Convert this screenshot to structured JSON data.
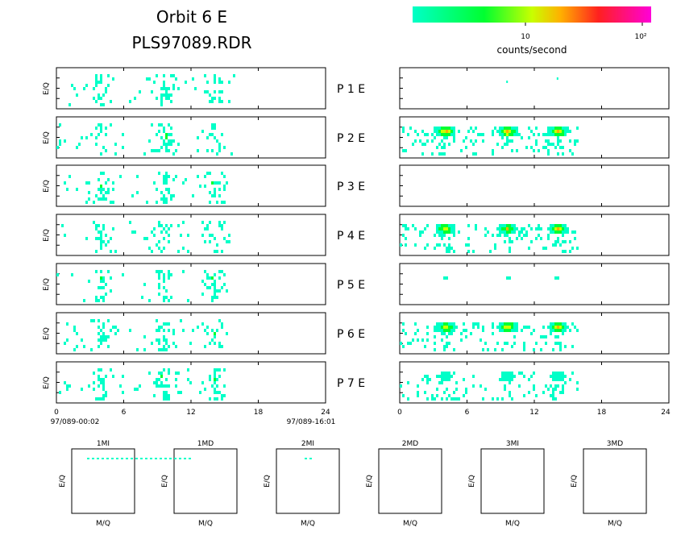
{
  "header": {
    "title_line1": "Orbit 6 E",
    "title_line2": "PLS97089.RDR"
  },
  "colorbar": {
    "label": "counts/second",
    "tick_labels": [
      "10",
      "10²"
    ],
    "colors": [
      "#00ffc8",
      "#00ff30",
      "#c8ff00",
      "#ffb000",
      "#ff2020",
      "#ff00d8"
    ]
  },
  "panels": {
    "ylabel": "E/Q",
    "labels": [
      "P 1 E",
      "P 2 E",
      "P 3 E",
      "P 4 E",
      "P 5 E",
      "P 6 E",
      "P 7 E"
    ]
  },
  "time_axis": {
    "ticks": [
      "0",
      "6",
      "12",
      "18",
      "24"
    ],
    "start_label": "97/089-00:02",
    "end_label": "97/089-16:01"
  },
  "mass_panels": {
    "titles": [
      "1MI",
      "1MD",
      "2MI",
      "2MD",
      "3MI",
      "3MD"
    ],
    "xlabel": "M/Q",
    "ylabel": "E/Q"
  },
  "chart_data": {
    "type": "heatmap",
    "title": "Orbit 6 E",
    "subtitle": "PLS97089.RDR",
    "xlim": [
      0,
      24
    ],
    "x_ticks": [
      0,
      6,
      12,
      18,
      24
    ],
    "color_scale": "log",
    "color_label": "counts/second",
    "series": [
      {
        "name": "P 1 E",
        "active_hour_range": [
          0,
          16
        ],
        "left_bursts": [
          4,
          9.5,
          14
        ],
        "right_bursts": [],
        "right_peak_level": 0.05
      },
      {
        "name": "P 2 E",
        "active_hour_range": [
          0,
          16
        ],
        "left_bursts": [
          4,
          9.5,
          14
        ],
        "right_bursts": [
          4,
          9.5,
          14
        ],
        "right_peak_level": 0.8
      },
      {
        "name": "P 3 E",
        "active_hour_range": [
          0,
          16
        ],
        "left_bursts": [
          4,
          9.5,
          14
        ],
        "right_bursts": [],
        "right_peak_level": 0.0
      },
      {
        "name": "P 4 E",
        "active_hour_range": [
          0,
          16
        ],
        "left_bursts": [
          4,
          9.5,
          14
        ],
        "right_bursts": [
          4,
          9.5,
          14
        ],
        "right_peak_level": 0.7
      },
      {
        "name": "P 5 E",
        "active_hour_range": [
          0,
          16
        ],
        "left_bursts": [
          4,
          9.5,
          14
        ],
        "right_bursts": [
          4,
          9.5,
          14
        ],
        "right_peak_level": 0.15
      },
      {
        "name": "P 6 E",
        "active_hour_range": [
          0,
          16
        ],
        "left_bursts": [
          4,
          9.5,
          14
        ],
        "right_bursts": [
          4,
          9.5,
          14
        ],
        "right_peak_level": 0.75
      },
      {
        "name": "P 7 E",
        "active_hour_range": [
          0,
          16
        ],
        "left_bursts": [
          4,
          9.5,
          14
        ],
        "right_bursts": [
          4,
          9.5,
          14
        ],
        "right_peak_level": 0.3
      }
    ]
  }
}
